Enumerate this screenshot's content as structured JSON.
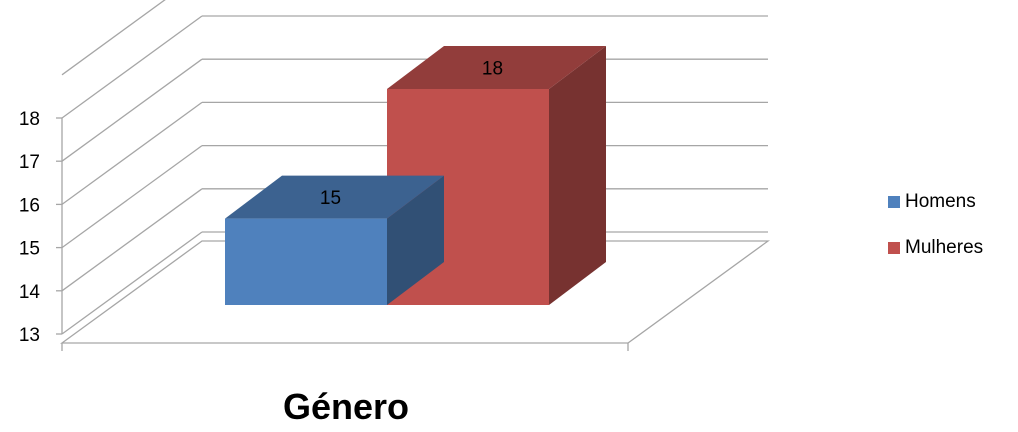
{
  "chart_data": {
    "type": "bar",
    "style": "3d-clustered-column",
    "categories": [
      ""
    ],
    "series": [
      {
        "name": "Homens",
        "values": [
          15
        ],
        "color": "#4F81BD"
      },
      {
        "name": "Mulheres",
        "values": [
          18
        ],
        "color": "#C0504D"
      }
    ],
    "data_labels": [
      "15",
      "18"
    ],
    "xlabel": "Género",
    "ylabel": "",
    "ylim": [
      13,
      18
    ],
    "yticks": [
      "13",
      "14",
      "15",
      "16",
      "17",
      "18"
    ],
    "grid": true,
    "legend": "right"
  }
}
